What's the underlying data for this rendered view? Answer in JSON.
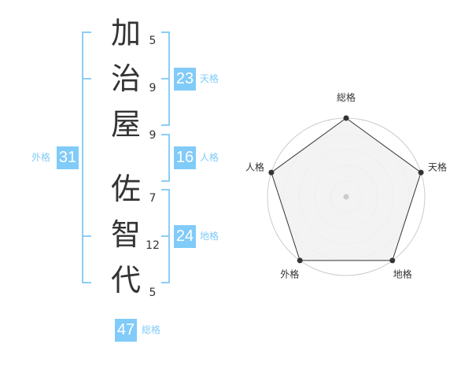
{
  "name": {
    "chars": [
      {
        "char": "加",
        "strokes": "5"
      },
      {
        "char": "治",
        "strokes": "9"
      },
      {
        "char": "屋",
        "strokes": "9"
      },
      {
        "char": "佐",
        "strokes": "7"
      },
      {
        "char": "智",
        "strokes": "12"
      },
      {
        "char": "代",
        "strokes": "5"
      }
    ]
  },
  "kaku": {
    "tenkaku": {
      "label": "天格",
      "value": "23"
    },
    "jinkaku": {
      "label": "人格",
      "value": "16"
    },
    "chikaku": {
      "label": "地格",
      "value": "24"
    },
    "gaikaku": {
      "label": "外格",
      "value": "31"
    },
    "soukaku": {
      "label": "総格",
      "value": "47"
    }
  },
  "colors": {
    "accent": "#80cbf8",
    "text": "#333333"
  },
  "chart_data": {
    "type": "radar",
    "axes": [
      "総格",
      "天格",
      "地格",
      "外格",
      "人格"
    ],
    "values": [
      5,
      5,
      5,
      5,
      5
    ],
    "rmax": 5,
    "rings": 5
  }
}
